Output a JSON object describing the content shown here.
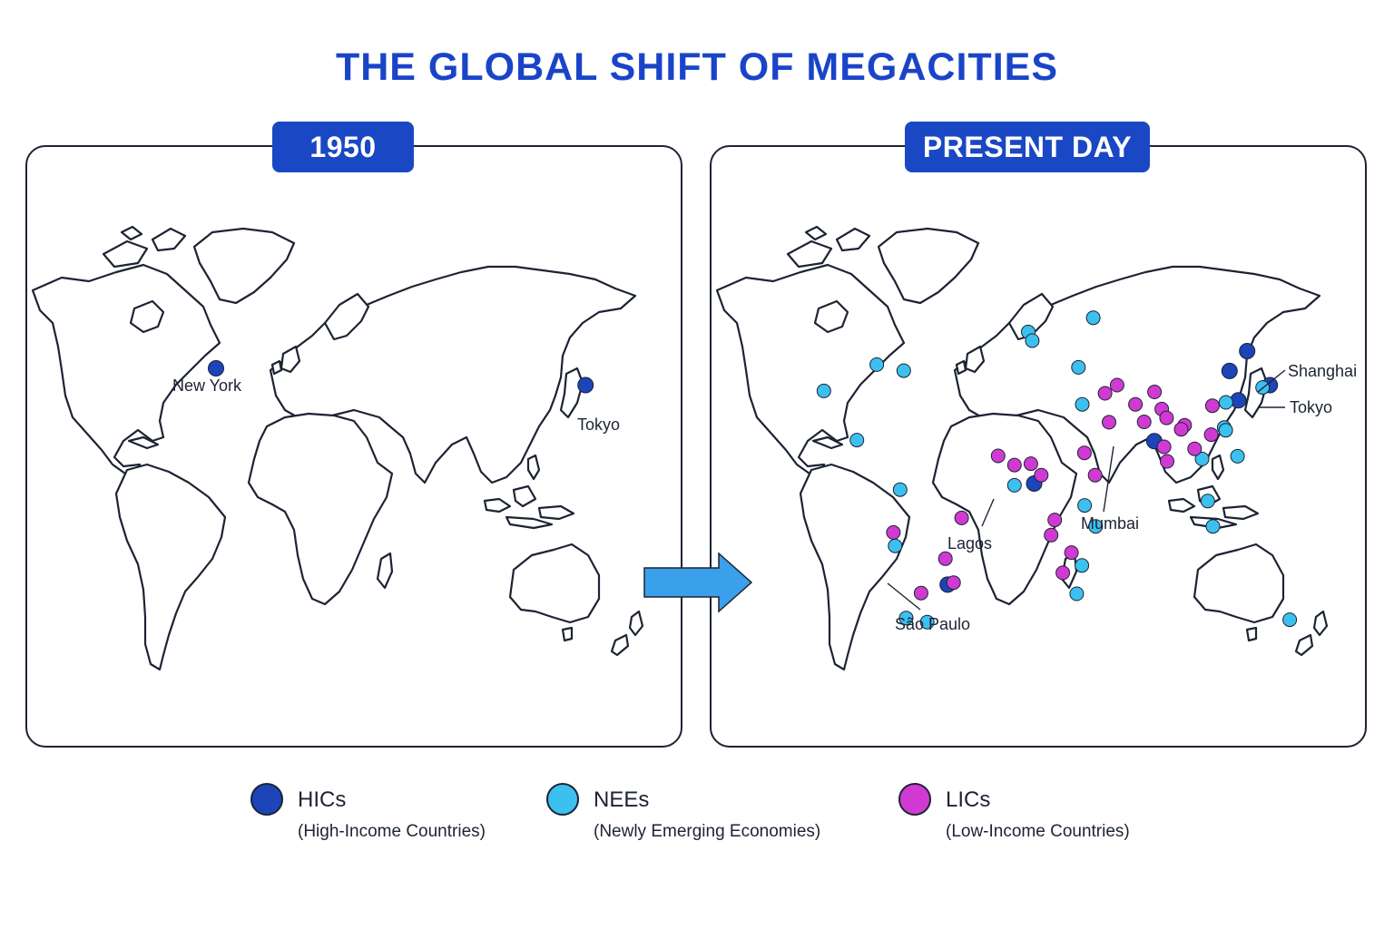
{
  "title": "THE GLOBAL SHIFT OF MEGACITIES",
  "colors": {
    "hic": "#1b45b8",
    "nee": "#3cc0f0",
    "lic": "#d03ad3",
    "accent": "#1a47c3",
    "arrow": "#3aa0ea"
  },
  "panels": {
    "past": {
      "label": "1950"
    },
    "present": {
      "label": "PRESENT DAY"
    }
  },
  "labels_1950": {
    "new_york": "New York",
    "tokyo": "Tokyo"
  },
  "labels_present": {
    "shanghai": "Shanghai",
    "tokyo": "Tokyo",
    "mumbai": "Mumbai",
    "lagos": "Lagos",
    "sao_paulo": "São Paulo"
  },
  "legend": [
    {
      "name": "HICs",
      "description": "(High-Income Countries)",
      "category": "hic"
    },
    {
      "name": "NEEs",
      "description": "(Newly Emerging Economies)",
      "category": "nee"
    },
    {
      "name": "LICs",
      "description": "(Low-Income Countries)",
      "category": "lic"
    }
  ],
  "cities_1950": [
    {
      "name": "New York",
      "category": "hic",
      "lat": 40.7,
      "lon": -74.0
    },
    {
      "name": "Tokyo",
      "category": "hic",
      "lat": 35.7,
      "lon": 139.7
    }
  ],
  "cities_present": [
    {
      "name": "Tokyo",
      "category": "hic",
      "lat": 35.7,
      "lon": 139.7
    },
    {
      "name": "Shanghai",
      "category": "hic",
      "lat": 31.2,
      "lon": 121.5
    },
    {
      "category": "hic",
      "lat": 39.9,
      "lon": 116.4
    },
    {
      "category": "hic",
      "lat": 45.8,
      "lon": 126.6
    },
    {
      "name": "Mumbai",
      "category": "hic",
      "lat": 19.1,
      "lon": 72.9
    },
    {
      "name": "Lagos",
      "category": "hic",
      "lat": 6.5,
      "lon": 3.4
    },
    {
      "name": "São Paulo",
      "category": "hic",
      "lat": -23.5,
      "lon": -46.6
    },
    {
      "category": "nee",
      "lat": 34.0,
      "lon": -118.2
    },
    {
      "category": "nee",
      "lat": 41.8,
      "lon": -87.6
    },
    {
      "category": "nee",
      "lat": 40.0,
      "lon": -72.0
    },
    {
      "category": "nee",
      "lat": 19.4,
      "lon": -99.1
    },
    {
      "category": "nee",
      "lat": 4.7,
      "lon": -74.1
    },
    {
      "category": "nee",
      "lat": -12.0,
      "lon": -77.0
    },
    {
      "category": "nee",
      "lat": -33.4,
      "lon": -70.6
    },
    {
      "category": "nee",
      "lat": -34.6,
      "lon": -58.4
    },
    {
      "category": "nee",
      "lat": 55.7,
      "lon": 37.6
    },
    {
      "category": "nee",
      "lat": 51.5,
      "lon": 0.0
    },
    {
      "category": "nee",
      "lat": 48.9,
      "lon": 2.3
    },
    {
      "category": "nee",
      "lat": 41.0,
      "lon": 29.0
    },
    {
      "category": "nee",
      "lat": 30.0,
      "lon": 31.2
    },
    {
      "category": "nee",
      "lat": 0.0,
      "lon": 32.6
    },
    {
      "category": "nee",
      "lat": -6.2,
      "lon": 39.0
    },
    {
      "category": "nee",
      "lat": -17.8,
      "lon": 31.0
    },
    {
      "category": "nee",
      "lat": -26.2,
      "lon": 28.0
    },
    {
      "category": "nee",
      "lat": 6.0,
      "lon": -8.0
    },
    {
      "category": "nee",
      "lat": 35.0,
      "lon": 135.5
    },
    {
      "category": "nee",
      "lat": 30.6,
      "lon": 114.3
    },
    {
      "category": "nee",
      "lat": 23.1,
      "lon": 113.3
    },
    {
      "category": "nee",
      "lat": 22.3,
      "lon": 114.2
    },
    {
      "category": "nee",
      "lat": 13.8,
      "lon": 100.5
    },
    {
      "category": "nee",
      "lat": 14.6,
      "lon": 121.0
    },
    {
      "category": "nee",
      "lat": 1.3,
      "lon": 103.8
    },
    {
      "category": "nee",
      "lat": -6.2,
      "lon": 106.8
    },
    {
      "category": "nee",
      "lat": -33.9,
      "lon": 151.2
    },
    {
      "category": "lic",
      "lat": 35.7,
      "lon": 51.4
    },
    {
      "category": "lic",
      "lat": 30.0,
      "lon": 62.0
    },
    {
      "category": "lic",
      "lat": 28.6,
      "lon": 77.2
    },
    {
      "category": "lic",
      "lat": 24.8,
      "lon": 67.0
    },
    {
      "category": "lic",
      "lat": 23.8,
      "lon": 90.4
    },
    {
      "category": "lic",
      "lat": 22.6,
      "lon": 88.4
    },
    {
      "category": "lic",
      "lat": 13.1,
      "lon": 80.3
    },
    {
      "category": "lic",
      "lat": 17.4,
      "lon": 78.5
    },
    {
      "category": "lic",
      "lat": 16.8,
      "lon": 96.2
    },
    {
      "category": "lic",
      "lat": 21.0,
      "lon": 105.8
    },
    {
      "category": "lic",
      "lat": 29.6,
      "lon": 106.5
    },
    {
      "category": "lic",
      "lat": 26.0,
      "lon": 80.0
    },
    {
      "category": "lic",
      "lat": 33.7,
      "lon": 73.0
    },
    {
      "category": "lic",
      "lat": 33.3,
      "lon": 44.4
    },
    {
      "category": "lic",
      "lat": 24.7,
      "lon": 46.7
    },
    {
      "category": "lic",
      "lat": 15.6,
      "lon": 32.5
    },
    {
      "category": "lic",
      "lat": 9.0,
      "lon": 38.7
    },
    {
      "category": "lic",
      "lat": 14.7,
      "lon": -17.4
    },
    {
      "category": "lic",
      "lat": 12.0,
      "lon": -8.0
    },
    {
      "category": "lic",
      "lat": 12.4,
      "lon": 1.5
    },
    {
      "category": "lic",
      "lat": 9.0,
      "lon": 7.5
    },
    {
      "category": "lic",
      "lat": -4.3,
      "lon": 15.3
    },
    {
      "category": "lic",
      "lat": -8.8,
      "lon": 13.2
    },
    {
      "category": "lic",
      "lat": -14.0,
      "lon": 25.0
    },
    {
      "category": "lic",
      "lat": -20.0,
      "lon": 20.0
    },
    {
      "category": "lic",
      "lat": -15.8,
      "lon": -47.9
    },
    {
      "category": "lic",
      "lat": -3.7,
      "lon": -38.5
    },
    {
      "category": "lic",
      "lat": -8.0,
      "lon": -78.0
    },
    {
      "category": "lic",
      "lat": -22.9,
      "lon": -43.2
    },
    {
      "category": "lic",
      "lat": -26.0,
      "lon": -62.0
    }
  ]
}
